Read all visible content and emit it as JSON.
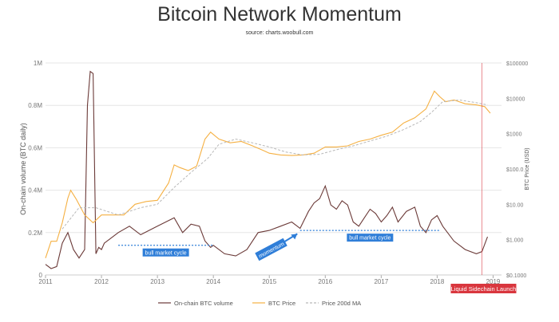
{
  "title": "Bitcoin Network Momentum",
  "subtitle": "source: charts.woobull.com",
  "colors": {
    "volume": "#6b3a38",
    "volume_ma": "#5a3331",
    "price": "#f5b042",
    "price_ma": "#b8b8b8",
    "annotation": "#2f7ed8",
    "annotation_text": "#ffffff",
    "sidechain": "#d9363e",
    "grid": "#e6e6e6"
  },
  "chart_data": {
    "type": "line",
    "x_axis": {
      "tick_labels": [
        "2011",
        "2012",
        "2013",
        "2014",
        "2015",
        "2016",
        "2017",
        "2018",
        "2019"
      ],
      "range": [
        2011.0,
        2019.15
      ]
    },
    "y_left": {
      "label": "On-chain volume (BTC daily)",
      "tick_labels": [
        "0",
        "0.2M",
        "0.4M",
        "0.6M",
        "0.8M",
        "1M"
      ],
      "range": [
        0,
        1000000
      ]
    },
    "y_right": {
      "label": "BTC Price (USD)",
      "scale": "log",
      "tick_labels": [
        "$0.1000",
        "$1.000",
        "$10.00",
        "$100.0",
        "$1000",
        "$10000",
        "$100000"
      ],
      "range": [
        0.1,
        100000
      ]
    },
    "legend_position": "bottom",
    "grid": true,
    "series": [
      {
        "name": "On-chain BTC volume",
        "axis": "left",
        "x": [
          2011.0,
          2011.1,
          2011.2,
          2011.3,
          2011.4,
          2011.5,
          2011.6,
          2011.7,
          2011.75,
          2011.8,
          2011.85,
          2011.9,
          2011.95,
          2012.0,
          2012.05,
          2012.15,
          2012.3,
          2012.5,
          2012.7,
          2012.85,
          2013.0,
          2013.15,
          2013.3,
          2013.45,
          2013.6,
          2013.75,
          2013.85,
          2013.95,
          2014.0,
          2014.2,
          2014.4,
          2014.6,
          2014.8,
          2015.0,
          2015.2,
          2015.4,
          2015.55,
          2015.7,
          2015.8,
          2015.9,
          2016.0,
          2016.1,
          2016.2,
          2016.3,
          2016.4,
          2016.5,
          2016.6,
          2016.7,
          2016.8,
          2016.9,
          2017.0,
          2017.1,
          2017.2,
          2017.3,
          2017.45,
          2017.6,
          2017.7,
          2017.8,
          2017.9,
          2018.0,
          2018.1,
          2018.3,
          2018.5,
          2018.7,
          2018.8,
          2018.9
        ],
        "values": [
          50000,
          30000,
          40000,
          150000,
          200000,
          120000,
          80000,
          120000,
          800000,
          960000,
          950000,
          100000,
          130000,
          120000,
          150000,
          170000,
          200000,
          230000,
          190000,
          210000,
          230000,
          250000,
          270000,
          200000,
          240000,
          230000,
          160000,
          130000,
          140000,
          100000,
          90000,
          120000,
          200000,
          210000,
          230000,
          250000,
          220000,
          300000,
          340000,
          360000,
          420000,
          330000,
          310000,
          350000,
          330000,
          250000,
          230000,
          270000,
          310000,
          290000,
          250000,
          280000,
          320000,
          250000,
          300000,
          320000,
          230000,
          200000,
          260000,
          280000,
          230000,
          160000,
          120000,
          100000,
          110000,
          180000
        ]
      },
      {
        "name": "BTC Price",
        "axis": "right",
        "x": [
          2011.0,
          2011.1,
          2011.2,
          2011.3,
          2011.4,
          2011.45,
          2011.55,
          2011.7,
          2011.85,
          2012.0,
          2012.2,
          2012.4,
          2012.6,
          2012.8,
          2013.0,
          2013.2,
          2013.3,
          2013.4,
          2013.55,
          2013.7,
          2013.85,
          2013.95,
          2014.1,
          2014.3,
          2014.5,
          2014.7,
          2014.9,
          2015.0,
          2015.2,
          2015.4,
          2015.6,
          2015.8,
          2016.0,
          2016.2,
          2016.4,
          2016.6,
          2016.8,
          2017.0,
          2017.2,
          2017.4,
          2017.6,
          2017.8,
          2017.95,
          2018.05,
          2018.15,
          2018.3,
          2018.5,
          2018.7,
          2018.85,
          2018.95
        ],
        "values": [
          0.3,
          0.9,
          0.9,
          3,
          15,
          25,
          14,
          5,
          3,
          5,
          5,
          5,
          10,
          12,
          13,
          40,
          130,
          110,
          90,
          120,
          700,
          1100,
          700,
          550,
          600,
          450,
          330,
          280,
          250,
          240,
          250,
          280,
          420,
          420,
          450,
          600,
          700,
          900,
          1100,
          2000,
          2800,
          5000,
          16000,
          11000,
          8000,
          9000,
          7000,
          6500,
          5800,
          3800
        ]
      },
      {
        "name": "Price 200d MA",
        "axis": "right",
        "x": [
          2011.3,
          2011.6,
          2011.9,
          2012.3,
          2012.7,
          2013.0,
          2013.3,
          2013.6,
          2013.9,
          2014.1,
          2014.4,
          2014.7,
          2015.0,
          2015.3,
          2015.6,
          2015.9,
          2016.2,
          2016.5,
          2016.8,
          2017.1,
          2017.4,
          2017.7,
          2017.9,
          2018.1,
          2018.4,
          2018.7,
          2018.9
        ],
        "values": [
          2,
          8,
          8,
          5,
          8,
          10,
          30,
          80,
          200,
          500,
          700,
          550,
          420,
          300,
          250,
          260,
          350,
          450,
          620,
          850,
          1300,
          2200,
          4000,
          8000,
          9000,
          7500,
          6500
        ]
      }
    ],
    "annotations": [
      {
        "label": "bull market cycle",
        "x_start": 2012.3,
        "x_end": 2014.0,
        "y": 140000
      },
      {
        "label": "bull market cycle",
        "x_start": 2015.55,
        "x_end": 2018.05,
        "y": 210000
      },
      {
        "label": "momentum",
        "x_start": 2014.8,
        "x_end": 2015.5,
        "y": 100000
      },
      {
        "label": "Liquid Sidechain Launch",
        "x": 2018.8
      }
    ]
  }
}
